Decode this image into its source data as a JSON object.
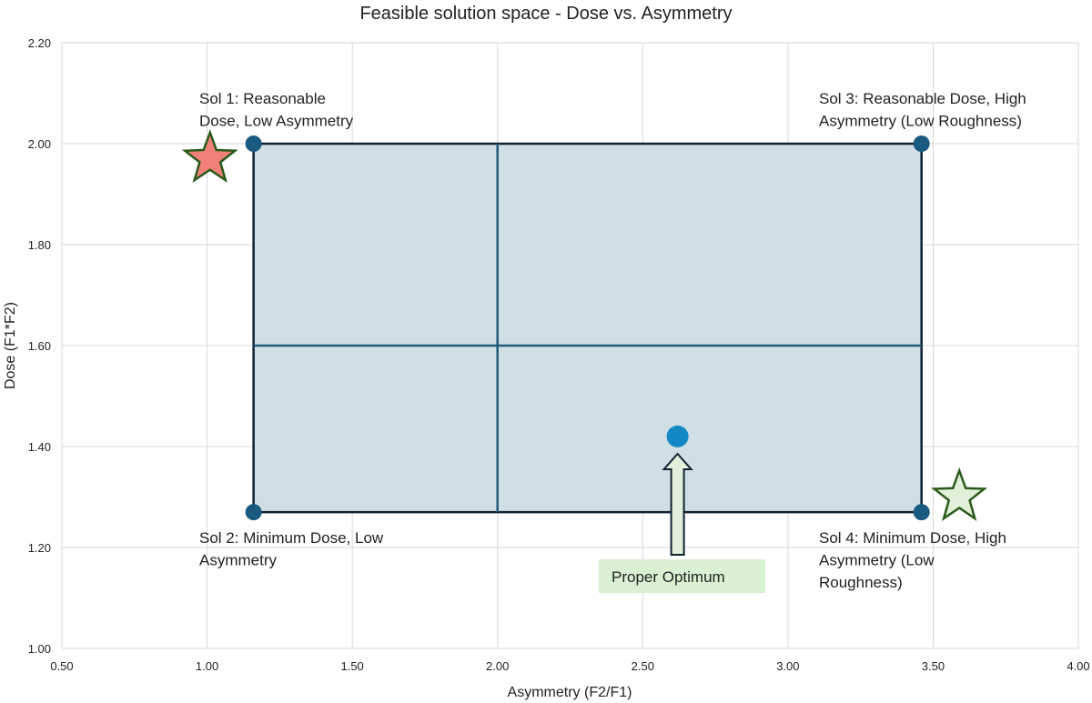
{
  "chart_data": {
    "type": "scatter",
    "title": "Feasible solution space - Dose vs. Asymmetry",
    "xlabel": "Asymmetry (F2/F1)",
    "ylabel": "Dose (F1*F2)",
    "xlim": [
      0.5,
      4.0
    ],
    "ylim": [
      1.0,
      2.2
    ],
    "xticks": [
      "0.50",
      "1.00",
      "1.50",
      "2.00",
      "2.50",
      "3.00",
      "3.50",
      "4.00"
    ],
    "yticks": [
      "1.00",
      "1.20",
      "1.40",
      "1.60",
      "1.80",
      "2.00",
      "2.20"
    ],
    "grid": true,
    "feasible_region": {
      "x": [
        1.16,
        3.46
      ],
      "y": [
        1.27,
        2.0
      ],
      "mid_x": 2.0,
      "mid_y": 1.6,
      "fill": "#d0dfe6",
      "border": "#0f2233",
      "midline": "#1f5b7a"
    },
    "corner_points": [
      {
        "x": 1.16,
        "y": 2.0
      },
      {
        "x": 1.16,
        "y": 1.27
      },
      {
        "x": 3.46,
        "y": 2.0
      },
      {
        "x": 3.46,
        "y": 1.27
      }
    ],
    "corner_color": "#1a5a80",
    "optimum_point": {
      "x": 2.62,
      "y": 1.42,
      "color": "#1488c4"
    },
    "stars": [
      {
        "x": 1.01,
        "y": 1.97,
        "fill": "#f08078",
        "stroke": "#2a5a1a"
      },
      {
        "x": 3.59,
        "y": 1.3,
        "fill": "#e2f0d9",
        "stroke": "#2a5a1a"
      }
    ],
    "annotations": [
      {
        "lines": [
          "Sol 1: Reasonable",
          "Dose, Low Asymmetry"
        ]
      },
      {
        "lines": [
          "Sol 2: Minimum Dose, Low",
          "Asymmetry"
        ]
      },
      {
        "lines": [
          "Sol 3: Reasonable Dose, High",
          "Asymmetry  (Low Roughness)"
        ]
      },
      {
        "lines": [
          "Sol 4: Minimum Dose, High",
          "Asymmetry  (Low",
          "Roughness)"
        ]
      }
    ],
    "callout": {
      "label": "Proper Optimum",
      "fill": "#d9f0d3",
      "arrow_fill": "#e2f0d9"
    }
  }
}
